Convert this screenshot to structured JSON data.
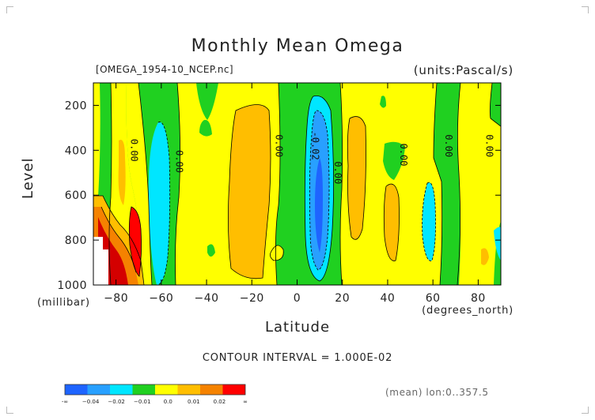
{
  "page": {
    "title": "Monthly Mean Omega",
    "file_label": "[OMEGA_1954-10_NCEP.nc]",
    "units_label": "(units:Pascal/s)",
    "contour_interval": "CONTOUR INTERVAL = 1.000E-02",
    "footer_note": "(mean) lon:0..357.5"
  },
  "chart_data": {
    "type": "heatmap",
    "title": "Monthly Mean Omega",
    "xlabel": "Latitude",
    "ylabel": "Level",
    "x_unit": "(degrees_north)",
    "y_unit": "(millibar)",
    "xlim": [
      -90,
      90
    ],
    "ylim": [
      1000,
      100
    ],
    "y_axis_inverted": true,
    "x_ticks": [
      -80,
      -60,
      -40,
      -20,
      0,
      20,
      40,
      60,
      80
    ],
    "y_ticks": [
      200,
      400,
      600,
      800,
      1000
    ],
    "contour_labels": [
      {
        "text": "0.00",
        "lat": -72,
        "level": 400
      },
      {
        "text": "0.00",
        "lat": -52,
        "level": 450
      },
      {
        "text": "0.00",
        "lat": -8,
        "level": 380
      },
      {
        "text": "-0.02",
        "lat": 8,
        "level": 380
      },
      {
        "text": "0.00",
        "lat": 18,
        "level": 500
      },
      {
        "text": "0.00",
        "lat": 47,
        "level": 420
      },
      {
        "text": "0.00",
        "lat": 67,
        "level": 380
      },
      {
        "text": "0.00",
        "lat": 85,
        "level": 380
      }
    ],
    "colorbar": {
      "colors": [
        "#1e64ff",
        "#28a0ff",
        "#00e6ff",
        "#20d020",
        "#ffff00",
        "#ffbe00",
        "#f58200",
        "#ff0000"
      ],
      "tick_labels": [
        "-∞",
        "−0.04",
        "−0.02",
        "−0.01",
        "0.0",
        "0.01",
        "0.02",
        "∞"
      ]
    },
    "grid": false,
    "legend": "colorbar bottom-left"
  }
}
